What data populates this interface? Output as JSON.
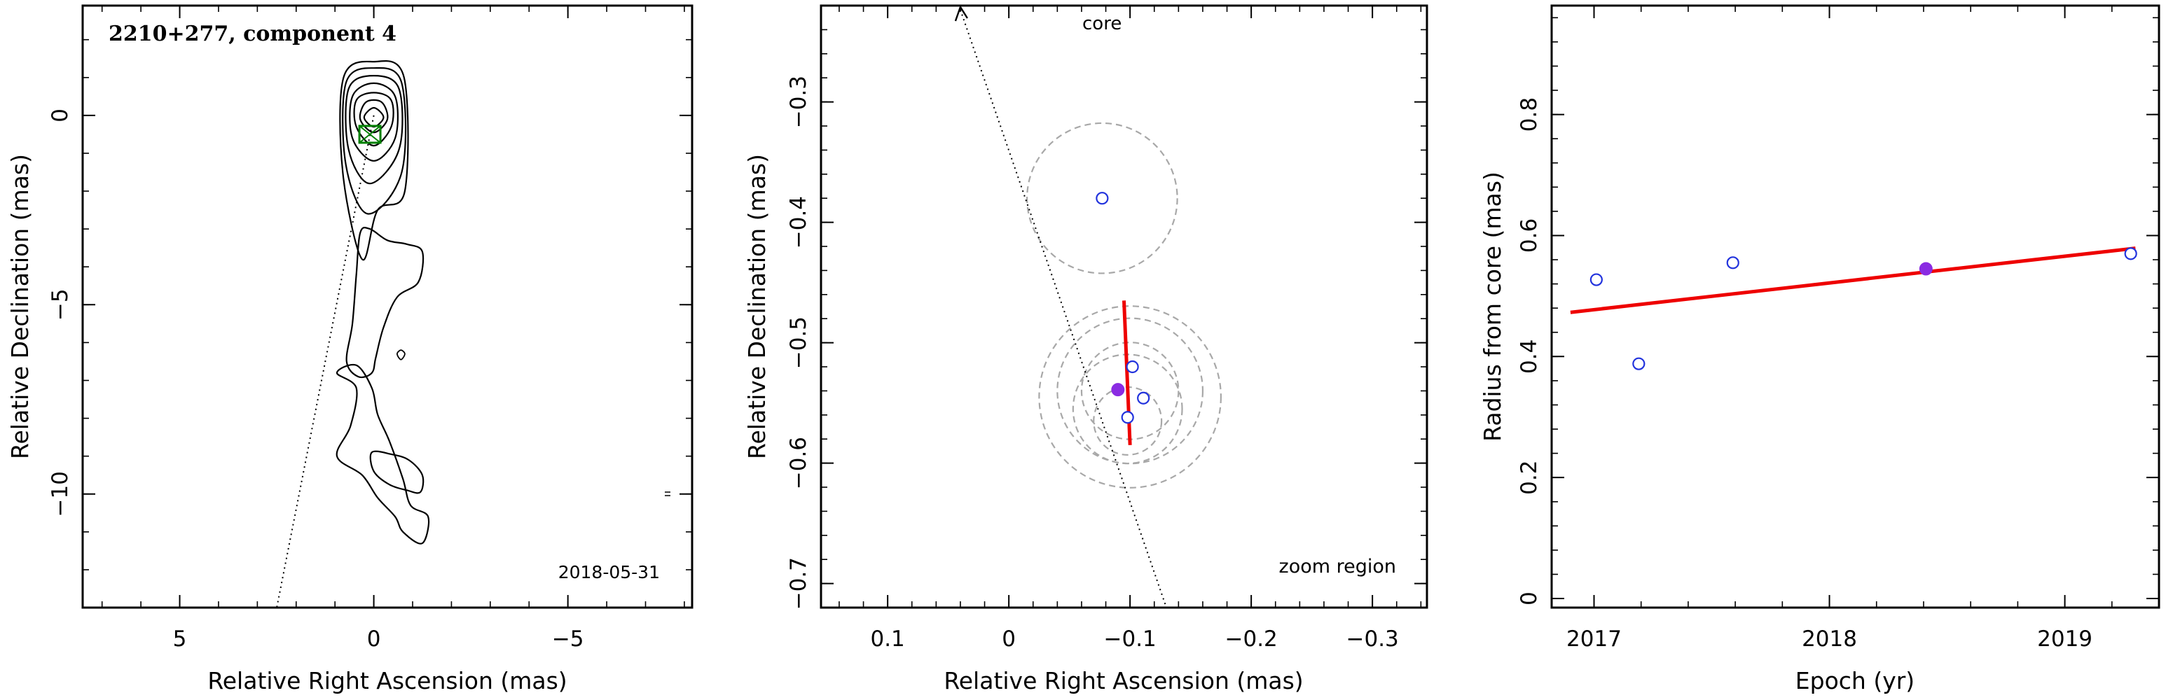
{
  "chart_data": [
    {
      "type": "scatter",
      "subtype": "contour-map",
      "title": "2210+277, component 4",
      "xlabel": "Relative Right Ascension (mas)",
      "ylabel": "Relative Declination (mas)",
      "xlim": [
        7.5,
        -8.2
      ],
      "ylim": [
        -13.0,
        2.9
      ],
      "x_ticks": [
        5,
        0,
        -5
      ],
      "y_ticks": [
        0,
        -5,
        -10
      ],
      "date_label": "2018-05-31",
      "jet_axis_line": [
        [
          0,
          0
        ],
        [
          2.5,
          -13.0
        ]
      ],
      "component_marker": {
        "x": 0.1,
        "y": -0.5,
        "color": "#008000"
      },
      "contours": [
        [
          [
            0.0,
            -0.3
          ],
          [
            0.25,
            -0.05
          ],
          [
            0.0,
            0.2
          ],
          [
            -0.25,
            -0.05
          ],
          [
            0.0,
            -0.3
          ]
        ],
        [
          [
            0.0,
            -0.45
          ],
          [
            0.35,
            -0.1
          ],
          [
            0.2,
            0.35
          ],
          [
            -0.2,
            0.35
          ],
          [
            -0.35,
            -0.1
          ],
          [
            0.0,
            -0.45
          ]
        ],
        [
          [
            0.0,
            -0.8
          ],
          [
            0.45,
            -0.3
          ],
          [
            0.45,
            0.4
          ],
          [
            0.0,
            0.6
          ],
          [
            -0.45,
            0.4
          ],
          [
            -0.45,
            -0.3
          ],
          [
            0.0,
            -0.8
          ]
        ],
        [
          [
            0.0,
            -1.2
          ],
          [
            0.55,
            -0.6
          ],
          [
            0.55,
            0.5
          ],
          [
            0.0,
            0.85
          ],
          [
            -0.55,
            0.5
          ],
          [
            -0.55,
            -0.6
          ],
          [
            0.0,
            -1.2
          ]
        ],
        [
          [
            0.1,
            -1.8
          ],
          [
            0.65,
            -0.9
          ],
          [
            0.65,
            0.7
          ],
          [
            0.0,
            1.05
          ],
          [
            -0.65,
            0.7
          ],
          [
            -0.65,
            -0.9
          ],
          [
            0.1,
            -1.8
          ]
        ],
        [
          [
            0.15,
            -2.6
          ],
          [
            0.72,
            -1.3
          ],
          [
            0.72,
            0.85
          ],
          [
            0.0,
            1.25
          ],
          [
            -0.72,
            0.85
          ],
          [
            -0.72,
            -1.5
          ],
          [
            0.15,
            -2.6
          ]
        ],
        [
          [
            0.3,
            -3.8
          ],
          [
            0.8,
            -1.5
          ],
          [
            0.78,
            1.0
          ],
          [
            0.0,
            1.42
          ],
          [
            -0.78,
            1.0
          ],
          [
            -0.8,
            -2.0
          ],
          [
            -0.1,
            -2.5
          ],
          [
            0.3,
            -3.8
          ]
        ],
        [
          [
            0.1,
            -3.0
          ],
          [
            -0.35,
            -3.3
          ],
          [
            -0.85,
            -3.4
          ],
          [
            -1.25,
            -3.6
          ],
          [
            -1.15,
            -4.4
          ],
          [
            -0.6,
            -4.8
          ],
          [
            -0.25,
            -5.6
          ],
          [
            -0.05,
            -6.4
          ],
          [
            0.05,
            -6.8
          ],
          [
            0.4,
            -6.9
          ],
          [
            0.7,
            -6.5
          ],
          [
            0.55,
            -5.5
          ],
          [
            0.45,
            -4.2
          ],
          [
            0.35,
            -3.1
          ],
          [
            0.1,
            -3.0
          ]
        ],
        [
          [
            0.95,
            -6.8
          ],
          [
            0.45,
            -7.2
          ],
          [
            0.6,
            -8.2
          ],
          [
            0.95,
            -9.0
          ],
          [
            0.3,
            -9.5
          ],
          [
            -0.1,
            -10.1
          ],
          [
            -0.55,
            -10.6
          ],
          [
            -0.75,
            -11.0
          ],
          [
            -1.25,
            -11.3
          ],
          [
            -1.4,
            -10.6
          ],
          [
            -0.95,
            -10.3
          ],
          [
            -0.75,
            -9.6
          ],
          [
            -0.4,
            -8.6
          ],
          [
            -0.1,
            -7.9
          ],
          [
            0.05,
            -7.2
          ],
          [
            0.45,
            -6.6
          ],
          [
            0.95,
            -6.8
          ]
        ],
        [
          [
            0.05,
            -8.9
          ],
          [
            -0.45,
            -8.95
          ],
          [
            -0.9,
            -9.1
          ],
          [
            -1.25,
            -9.5
          ],
          [
            -1.2,
            -9.95
          ],
          [
            -0.85,
            -9.9
          ],
          [
            -0.4,
            -9.75
          ],
          [
            0.0,
            -9.4
          ],
          [
            0.05,
            -8.9
          ]
        ]
      ],
      "small_contour": [
        [
          -0.7,
          -6.2
        ],
        [
          -0.8,
          -6.3
        ],
        [
          -0.7,
          -6.45
        ],
        [
          -0.6,
          -6.3
        ],
        [
          -0.7,
          -6.2
        ]
      ]
    },
    {
      "type": "scatter",
      "subtype": "zoom-region",
      "xlabel": "Relative Right Ascension (mas)",
      "ylabel": "Relative Declination (mas)",
      "xlim": [
        0.155,
        -0.345
      ],
      "ylim": [
        -0.72,
        -0.22
      ],
      "x_ticks": [
        0.1,
        0,
        -0.1,
        -0.2,
        -0.3
      ],
      "x_tick_labels": [
        "0.1",
        "0",
        "−0.1",
        "−0.2",
        "−0.3"
      ],
      "y_ticks": [
        -0.3,
        -0.4,
        -0.5,
        -0.6,
        -0.7
      ],
      "y_tick_labels": [
        "−0.3",
        "−0.4",
        "−0.5",
        "−0.6",
        "−0.7"
      ],
      "zoom_label": "zoom region",
      "core_label": "core",
      "core_direction_line": [
        [
          0.04,
          -0.22
        ],
        [
          -0.13,
          -0.72
        ]
      ],
      "fit_line": [
        [
          -0.095,
          -0.465
        ],
        [
          -0.1,
          -0.585
        ]
      ],
      "open_points": [
        {
          "x": -0.077,
          "y": -0.38
        },
        {
          "x": -0.102,
          "y": -0.52
        },
        {
          "x": -0.111,
          "y": -0.546
        },
        {
          "x": -0.098,
          "y": -0.562
        }
      ],
      "filled_point": {
        "x": -0.09,
        "y": -0.539
      },
      "circles": [
        {
          "x": -0.077,
          "y": -0.38,
          "r": 0.062
        },
        {
          "x": -0.1,
          "y": -0.545,
          "r": 0.075
        },
        {
          "x": -0.1,
          "y": -0.54,
          "r": 0.06
        },
        {
          "x": -0.098,
          "y": -0.555,
          "r": 0.045
        },
        {
          "x": -0.1,
          "y": -0.54,
          "r": 0.04
        },
        {
          "x": -0.098,
          "y": -0.565,
          "r": 0.028
        }
      ],
      "colors": {
        "points": "#2233dd",
        "filled": "#8a2be2",
        "fit": "#ee0000",
        "circles": "#a8a8a8"
      }
    },
    {
      "type": "scatter",
      "xlabel": "Epoch (yr)",
      "ylabel": "Radius from core (mas)",
      "xlim": [
        2016.82,
        2019.4
      ],
      "ylim": [
        -0.015,
        0.98
      ],
      "x_ticks": [
        2017,
        2018,
        2019
      ],
      "y_ticks": [
        0,
        0.2,
        0.4,
        0.6,
        0.8
      ],
      "y_tick_labels": [
        "0",
        "0.2",
        "0.4",
        "0.6",
        "0.8"
      ],
      "open_points": [
        {
          "x": 2017.01,
          "y": 0.527
        },
        {
          "x": 2017.19,
          "y": 0.388
        },
        {
          "x": 2017.59,
          "y": 0.555
        },
        {
          "x": 2019.28,
          "y": 0.57
        }
      ],
      "filled_point": {
        "x": 2018.41,
        "y": 0.545
      },
      "fit_line": [
        [
          2016.9,
          0.473
        ],
        [
          2019.3,
          0.579
        ]
      ],
      "colors": {
        "points": "#2233dd",
        "filled": "#8a2be2",
        "fit": "#ee0000"
      }
    }
  ]
}
